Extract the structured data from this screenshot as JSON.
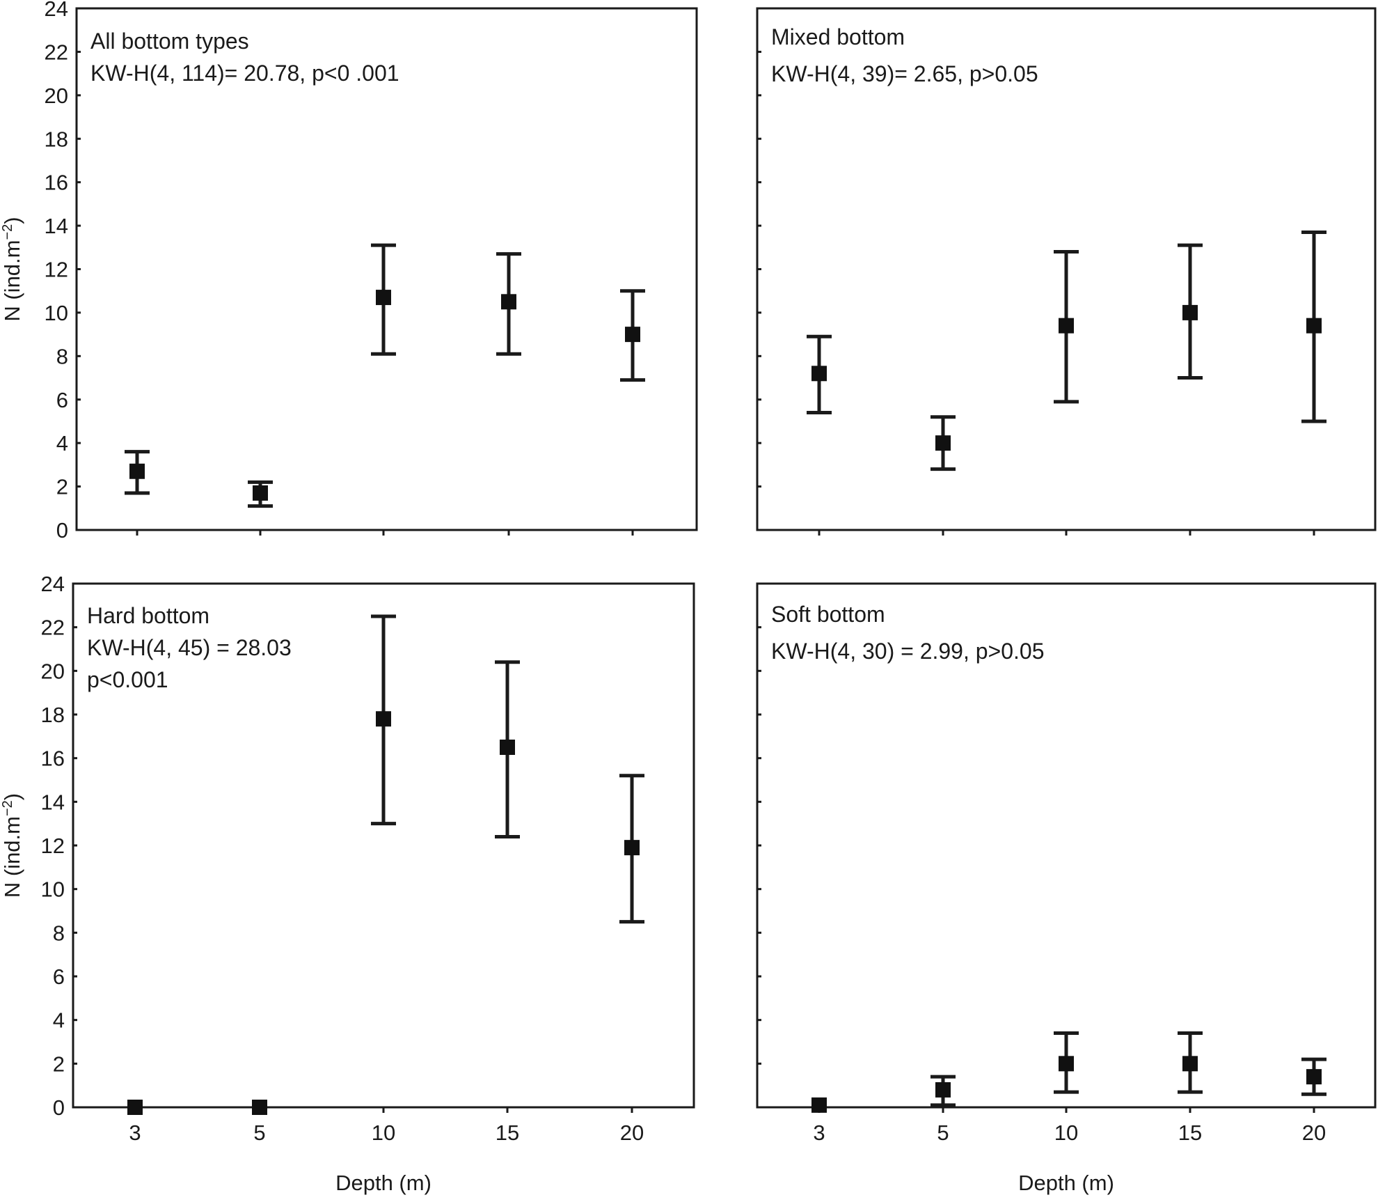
{
  "chart_data": [
    {
      "type": "scatter",
      "panel": "top-left",
      "annotations": [
        "All bottom types",
        "KW-H(4, 114)= 20.78, p<0 .001"
      ],
      "ylabel": "N (ind.m",
      "ylabel_sup": "−2",
      "ylabel_close": ")",
      "xlabel": "",
      "x": [
        "3",
        "5",
        "10",
        "15",
        "20"
      ],
      "y": [
        2.7,
        1.7,
        10.7,
        10.5,
        9.0
      ],
      "y_low": [
        1.7,
        1.1,
        8.1,
        8.1,
        6.9
      ],
      "y_high": [
        3.6,
        2.2,
        13.1,
        12.7,
        11.0
      ],
      "ylim": [
        0,
        24
      ],
      "yticks": [
        "0",
        "2",
        "4",
        "6",
        "8",
        "10",
        "12",
        "14",
        "16",
        "18",
        "20",
        "22",
        "24"
      ],
      "show_yticklabels": true,
      "show_xticklabels": false
    },
    {
      "type": "scatter",
      "panel": "top-right",
      "annotations": [
        "Mixed bottom",
        "KW-H(4, 39)= 2.65, p>0.05"
      ],
      "ylabel": "",
      "xlabel": "",
      "x": [
        "3",
        "5",
        "10",
        "15",
        "20"
      ],
      "y": [
        7.2,
        4.0,
        9.4,
        10.0,
        9.4
      ],
      "y_low": [
        5.4,
        2.8,
        5.9,
        7.0,
        5.0
      ],
      "y_high": [
        8.9,
        5.2,
        12.8,
        13.1,
        13.7
      ],
      "ylim": [
        0,
        24
      ],
      "yticks": [
        "0",
        "2",
        "4",
        "6",
        "8",
        "10",
        "12",
        "14",
        "16",
        "18",
        "20",
        "22",
        "24"
      ],
      "show_yticklabels": false,
      "show_xticklabels": false
    },
    {
      "type": "scatter",
      "panel": "bottom-left",
      "annotations": [
        "Hard bottom",
        "KW-H(4, 45) = 28.03",
        "p<0.001"
      ],
      "ylabel": "N (ind.m",
      "ylabel_sup": "−2",
      "ylabel_close": ")",
      "xlabel": "Depth (m)",
      "x": [
        "3",
        "5",
        "10",
        "15",
        "20"
      ],
      "y": [
        0.0,
        0.0,
        17.8,
        16.5,
        11.9
      ],
      "y_low": [
        0.0,
        0.0,
        13.0,
        12.4,
        8.5
      ],
      "y_high": [
        0.0,
        0.0,
        22.5,
        20.4,
        15.2
      ],
      "ylim": [
        0,
        24
      ],
      "yticks": [
        "0",
        "2",
        "4",
        "6",
        "8",
        "10",
        "12",
        "14",
        "16",
        "18",
        "20",
        "22",
        "24"
      ],
      "show_yticklabels": true,
      "show_xticklabels": true
    },
    {
      "type": "scatter",
      "panel": "bottom-right",
      "annotations": [
        "Soft bottom",
        "KW-H(4, 30) = 2.99, p>0.05"
      ],
      "ylabel": "",
      "xlabel": "Depth (m)",
      "x": [
        "3",
        "5",
        "10",
        "15",
        "20"
      ],
      "y": [
        0.1,
        0.8,
        2.0,
        2.0,
        1.4
      ],
      "y_low": [
        0.1,
        0.1,
        0.7,
        0.7,
        0.6
      ],
      "y_high": [
        0.1,
        1.4,
        3.4,
        3.4,
        2.2
      ],
      "ylim": [
        0,
        24
      ],
      "yticks": [
        "0",
        "2",
        "4",
        "6",
        "8",
        "10",
        "12",
        "14",
        "16",
        "18",
        "20",
        "22",
        "24"
      ],
      "show_yticklabels": false,
      "show_xticklabels": true
    }
  ]
}
